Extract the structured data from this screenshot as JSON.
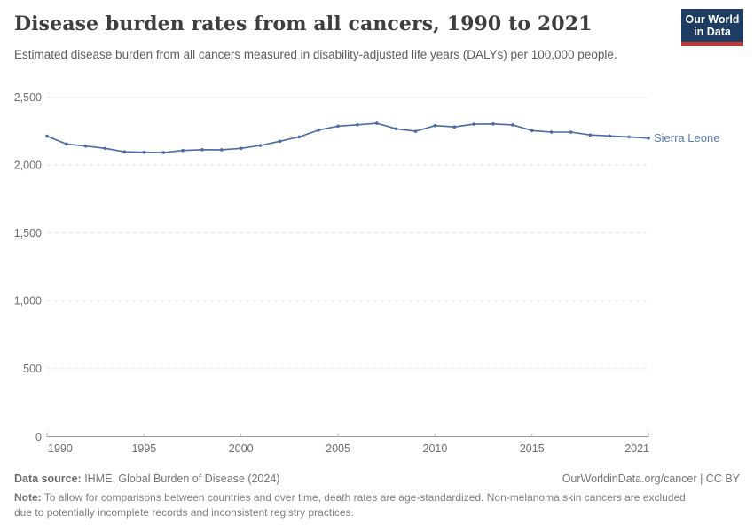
{
  "header": {
    "title": "Disease burden rates from all cancers, 1990 to 2021",
    "subtitle": "Estimated disease burden from all cancers measured in disability-adjusted life years (DALYs) per 100,000 people.",
    "logo": {
      "line1": "Our World",
      "line2": "in Data",
      "bg_color": "#1d3d63",
      "accent_color": "#be3a34"
    }
  },
  "chart_data": {
    "type": "line",
    "title": "Disease burden rates from all cancers, 1990 to 2021",
    "subtitle": "Estimated disease burden from all cancers measured in disability-adjusted life years (DALYs) per 100,000 people.",
    "xlabel": "",
    "ylabel": "",
    "x": [
      1990,
      1991,
      1992,
      1993,
      1994,
      1995,
      1996,
      1997,
      1998,
      1999,
      2000,
      2001,
      2002,
      2003,
      2004,
      2005,
      2006,
      2007,
      2008,
      2009,
      2010,
      2011,
      2012,
      2013,
      2014,
      2015,
      2016,
      2017,
      2018,
      2019,
      2020,
      2021
    ],
    "series": [
      {
        "name": "Sierra Leone",
        "color": "#4a6ba3",
        "label_color": "#5b7db3",
        "values": [
          2212,
          2155,
          2140,
          2123,
          2097,
          2094,
          2092,
          2107,
          2113,
          2112,
          2123,
          2144,
          2175,
          2207,
          2257,
          2286,
          2296,
          2307,
          2266,
          2248,
          2290,
          2280,
          2300,
          2302,
          2295,
          2253,
          2242,
          2242,
          2221,
          2214,
          2207,
          2198
        ]
      }
    ],
    "xlim": [
      1990,
      2021
    ],
    "ylim": [
      0,
      2500
    ],
    "xticks": [
      1990,
      1995,
      2000,
      2005,
      2010,
      2015,
      2021
    ],
    "yticks": [
      0,
      500,
      1000,
      1500,
      2000,
      2500
    ],
    "ytick_labels": [
      "0",
      "500",
      "1,000",
      "1,500",
      "2,000",
      "2,500"
    ],
    "grid": "horizontal-dashed",
    "legend_position": "end-of-line-label"
  },
  "footer": {
    "datasource_label": "Data source:",
    "datasource_text": " IHME, Global Burden of Disease (2024)",
    "link_text": "OurWorldinData.org/cancer | CC BY",
    "note_label": "Note:",
    "note_text": " To allow for comparisons between countries and over time, death rates are age-standardized. Non-melanoma skin cancers are excluded due to potentially incomplete records and inconsistent registry practices."
  },
  "colors": {
    "title": "#3e3e3e",
    "subtitle": "#5c5c5c",
    "tick_label": "#6e6e6e",
    "gridline": "#e2e2e2",
    "axis": "#9d9d9d",
    "footer_text": "#757575",
    "series_blue": "#4a6ba3"
  }
}
